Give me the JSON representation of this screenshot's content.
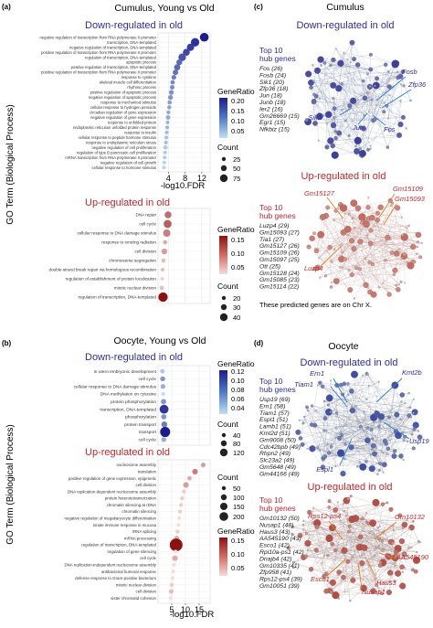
{
  "panel_a": {
    "label": "(a)",
    "title": "Cumulus, Young vs Old",
    "y_axis_label": "GO Term (Biological Process)",
    "x_axis_label": "-log10.FDR",
    "down": {
      "heading": "Down-regulated in old",
      "terms": [
        "negative regulation of transcription from RNA polymerase II promoter",
        "transcription, DNA-templated",
        "negative regulation of transcription, DNA-templated",
        "positive regulation of transcription from RNA polymerase II promoter",
        "regulation of transcription, DNA-templated",
        "apoptotic process",
        "positive regulation of transcription, DNA-templated",
        "positive regulation of transcription from RNA polymerase II promoter",
        "response to cytokine",
        "skeletal muscle cell differentiation",
        "rhythmic process",
        "positive regulation of apoptotic process",
        "negative regulation of apoptotic process",
        "response to mechanical stimulus",
        "cellular response to hydrogen peroxide",
        "circadian regulation of gene expression",
        "negative regulation of gene expression",
        "response to unfolded protein",
        "endoplasmic reticulum unfolded protein response",
        "response to insulin",
        "cellular response to peptide hormone stimulus",
        "response to endoplasmic reticulum stress",
        "negative regulation of cell proliferation",
        "regulation of type B pancreatic cell proliferation",
        "mRNA transcription from RNA polymerase II promoter",
        "negative regulation of cell growth",
        "cellular response to hormone stimulus"
      ]
    },
    "up": {
      "heading": "Up-regulated in old",
      "terms": [
        "DNA repair",
        "cell cycle",
        "cellular response to DNA damage stimulus",
        "response to ionizing radiation",
        "cell division",
        "chromosome segregation",
        "double-strand break repair via homologous recombination",
        "regulation of establishment of protein localization",
        "mitotic nuclear division",
        "regulation of transcription, DNA-templated"
      ]
    },
    "legend": {
      "gene_ratio_title": "GeneRatio",
      "down_gene_ratio_ticks": [
        "0.20",
        "0.15",
        "0.10",
        "0.05"
      ],
      "up_gene_ratio_ticks": [
        "0.15",
        "0.10",
        "0.05"
      ],
      "count_title": "Count",
      "down_count_ticks": [
        "25",
        "50",
        "75"
      ],
      "up_count_ticks": [
        "20",
        "30",
        "40"
      ]
    }
  },
  "panel_b": {
    "label": "(b)",
    "title": "Oocyte, Young vs Old",
    "y_axis_label": "GO Term (Biological Process)",
    "x_axis_label": "-log10.FDR",
    "down": {
      "heading": "Down-regulated in old",
      "terms": [
        "in utero embryonic development",
        "cell cycle",
        "cellular response to DNA damage stimulus",
        "DNA methylation on cytosine",
        "protein phosphorylation",
        "transcription, DNA-templated",
        "phosphorylation",
        "protein transport",
        "transport",
        "cell cycle"
      ]
    },
    "up": {
      "heading": "Up-regulated in old",
      "terms": [
        "nucleosome assembly",
        "translation",
        "positive regulation of gene expression, epigenetic",
        "cell division",
        "DNA replication-dependent nucleosome assembly",
        "protein heterotetramerization",
        "chromatin silencing at rDNA",
        "chromatin silencing",
        "negative regulation of megakaryocyte differentiation",
        "innate immune response in mucosa",
        "rRNA splicing",
        "mRNA processing",
        "regulation of transcription, DNA-templated",
        "regulation of gene silencing",
        "cell cycle",
        "DNA replication-independent nucleosome assembly",
        "antibacterial humoral response",
        "defense response to Gram-positive bacterium",
        "mitotic nuclear division",
        "cell division",
        "sister chromatid cohesion"
      ]
    },
    "legend": {
      "gene_ratio_title": "GeneRatio",
      "down_gene_ratio_ticks": [
        "0.12",
        "0.10",
        "0.08",
        "0.06",
        "0.04"
      ],
      "up_gene_ratio_ticks": [
        "0.15",
        "0.10",
        "0.05"
      ],
      "count_title": "Count",
      "down_count_ticks": [
        "40",
        "80",
        "120"
      ],
      "up_count_ticks": [
        "50",
        "100",
        "150",
        "200"
      ]
    }
  },
  "chart_data": [
    {
      "type": "scatter",
      "title": "Cumulus, Young vs Old — Down-regulated in old",
      "xlabel": "-log10.FDR",
      "xticks": [
        4,
        8,
        12
      ],
      "xlim": [
        1.5,
        14
      ],
      "points": [
        {
          "term": "negative regulation of transcription from RNA polymerase II promoter",
          "x": 12.6,
          "ratio": 0.22,
          "count": 80
        },
        {
          "term": "transcription, DNA-templated",
          "x": 10.4,
          "ratio": 0.2,
          "count": 75
        },
        {
          "term": "negative regulation of transcription, DNA-templated",
          "x": 9.3,
          "ratio": 0.19,
          "count": 60
        },
        {
          "term": "positive regulation of transcription from RNA polymerase II promoter",
          "x": 8.3,
          "ratio": 0.18,
          "count": 55
        },
        {
          "term": "regulation of transcription, DNA-templated",
          "x": 7.3,
          "ratio": 0.17,
          "count": 65
        },
        {
          "term": "apoptotic process",
          "x": 6.6,
          "ratio": 0.15,
          "count": 40
        },
        {
          "term": "positive regulation of transcription, DNA-templated",
          "x": 6.1,
          "ratio": 0.15,
          "count": 45
        },
        {
          "term": "positive regulation of transcription from RNA polymerase II promoter",
          "x": 5.7,
          "ratio": 0.14,
          "count": 35
        },
        {
          "term": "response to cytokine",
          "x": 5.3,
          "ratio": 0.13,
          "count": 25
        },
        {
          "term": "skeletal muscle cell differentiation",
          "x": 5.0,
          "ratio": 0.12,
          "count": 20
        },
        {
          "term": "rhythmic process",
          "x": 4.9,
          "ratio": 0.12,
          "count": 22
        },
        {
          "term": "positive regulation of apoptotic process",
          "x": 4.7,
          "ratio": 0.11,
          "count": 28
        },
        {
          "term": "negative regulation of apoptotic process",
          "x": 4.5,
          "ratio": 0.11,
          "count": 26
        },
        {
          "term": "response to mechanical stimulus",
          "x": 4.3,
          "ratio": 0.1,
          "count": 18
        },
        {
          "term": "cellular response to hydrogen peroxide",
          "x": 4.2,
          "ratio": 0.1,
          "count": 15
        },
        {
          "term": "circadian regulation of gene expression",
          "x": 4.0,
          "ratio": 0.09,
          "count": 14
        },
        {
          "term": "negative regulation of gene expression",
          "x": 3.9,
          "ratio": 0.09,
          "count": 22
        },
        {
          "term": "response to unfolded protein",
          "x": 3.8,
          "ratio": 0.08,
          "count": 12
        },
        {
          "term": "endoplasmic reticulum unfolded protein response",
          "x": 3.7,
          "ratio": 0.08,
          "count": 11
        },
        {
          "term": "response to insulin",
          "x": 3.6,
          "ratio": 0.07,
          "count": 13
        },
        {
          "term": "cellular response to peptide hormone stimulus",
          "x": 3.5,
          "ratio": 0.07,
          "count": 12
        },
        {
          "term": "response to endoplasmic reticulum stress",
          "x": 3.4,
          "ratio": 0.07,
          "count": 13
        },
        {
          "term": "negative regulation of cell proliferation",
          "x": 3.3,
          "ratio": 0.06,
          "count": 20
        },
        {
          "term": "regulation of type B pancreatic cell proliferation",
          "x": 3.2,
          "ratio": 0.06,
          "count": 8
        },
        {
          "term": "mRNA transcription from RNA polymerase II promoter",
          "x": 3.1,
          "ratio": 0.06,
          "count": 9
        },
        {
          "term": "negative regulation of cell growth",
          "x": 3.0,
          "ratio": 0.05,
          "count": 11
        },
        {
          "term": "cellular response to hormone stimulus",
          "x": 2.9,
          "ratio": 0.05,
          "count": 10
        }
      ]
    },
    {
      "type": "scatter",
      "title": "Cumulus, Young vs Old — Up-regulated in old",
      "xlabel": "-log10.FDR",
      "xticks": [
        4,
        8,
        12
      ],
      "xlim": [
        1.5,
        14
      ],
      "points": [
        {
          "term": "DNA repair",
          "x": 3.9,
          "ratio": 0.1,
          "count": 30
        },
        {
          "term": "cell cycle",
          "x": 3.8,
          "ratio": 0.11,
          "count": 35
        },
        {
          "term": "cellular response to DNA damage stimulus",
          "x": 3.6,
          "ratio": 0.09,
          "count": 32
        },
        {
          "term": "response to ionizing radiation",
          "x": 3.2,
          "ratio": 0.06,
          "count": 18
        },
        {
          "term": "cell division",
          "x": 3.0,
          "ratio": 0.07,
          "count": 25
        },
        {
          "term": "chromosome segregation",
          "x": 2.8,
          "ratio": 0.05,
          "count": 17
        },
        {
          "term": "double-strand break repair via homologous recombination",
          "x": 2.6,
          "ratio": 0.05,
          "count": 15
        },
        {
          "term": "regulation of establishment of protein localization",
          "x": 2.5,
          "ratio": 0.04,
          "count": 14
        },
        {
          "term": "mitotic nuclear division",
          "x": 2.4,
          "ratio": 0.05,
          "count": 18
        },
        {
          "term": "regulation of transcription, DNA-templated",
          "x": 2.7,
          "ratio": 0.16,
          "count": 42
        }
      ]
    },
    {
      "type": "scatter",
      "title": "Oocyte, Young vs Old — Down-regulated in old",
      "xlabel": "-log10.FDR",
      "xticks": [
        5,
        10,
        15
      ],
      "xlim": [
        0,
        19
      ],
      "points": [
        {
          "term": "in utero embryonic development",
          "x": 1.6,
          "ratio": 0.05,
          "count": 30
        },
        {
          "term": "cell cycle",
          "x": 1.7,
          "ratio": 0.07,
          "count": 40
        },
        {
          "term": "cellular response to DNA damage stimulus",
          "x": 1.8,
          "ratio": 0.06,
          "count": 35
        },
        {
          "term": "DNA methylation on cytosine",
          "x": 1.9,
          "ratio": 0.04,
          "count": 20
        },
        {
          "term": "protein phosphorylation",
          "x": 2.0,
          "ratio": 0.07,
          "count": 45
        },
        {
          "term": "transcription, DNA-templated",
          "x": 2.2,
          "ratio": 0.11,
          "count": 110
        },
        {
          "term": "phosphorylation",
          "x": 2.1,
          "ratio": 0.07,
          "count": 45
        },
        {
          "term": "protein transport",
          "x": 2.3,
          "ratio": 0.08,
          "count": 55
        },
        {
          "term": "transport",
          "x": 2.6,
          "ratio": 0.12,
          "count": 130
        },
        {
          "term": "cell cycle",
          "x": 2.1,
          "ratio": 0.06,
          "count": 40
        }
      ]
    },
    {
      "type": "scatter",
      "title": "Oocyte, Young vs Old — Up-regulated in old",
      "xlabel": "-log10.FDR",
      "xticks": [
        5,
        10,
        15
      ],
      "xlim": [
        0,
        19
      ],
      "points": [
        {
          "term": "nucleosome assembly",
          "x": 16.5,
          "ratio": 0.07,
          "count": 40
        },
        {
          "term": "translation",
          "x": 13.5,
          "ratio": 0.09,
          "count": 60
        },
        {
          "term": "positive regulation of gene expression, epigenetic",
          "x": 11.5,
          "ratio": 0.06,
          "count": 35
        },
        {
          "term": "cell division",
          "x": 10.2,
          "ratio": 0.07,
          "count": 60
        },
        {
          "term": "DNA replication-dependent nucleosome assembly",
          "x": 9.4,
          "ratio": 0.04,
          "count": 25
        },
        {
          "term": "protein heterotetramerization",
          "x": 8.8,
          "ratio": 0.04,
          "count": 25
        },
        {
          "term": "chromatin silencing at rDNA",
          "x": 8.4,
          "ratio": 0.04,
          "count": 22
        },
        {
          "term": "chromatin silencing",
          "x": 8.0,
          "ratio": 0.04,
          "count": 24
        },
        {
          "term": "negative regulation of megakaryocyte differentiation",
          "x": 7.7,
          "ratio": 0.03,
          "count": 20
        },
        {
          "term": "innate immune response in mucosa",
          "x": 7.4,
          "ratio": 0.03,
          "count": 20
        },
        {
          "term": "rRNA splicing",
          "x": 7.1,
          "ratio": 0.04,
          "count": 28
        },
        {
          "term": "mRNA processing",
          "x": 6.8,
          "ratio": 0.06,
          "count": 50
        },
        {
          "term": "regulation of transcription, DNA-templated",
          "x": 6.6,
          "ratio": 0.16,
          "count": 210
        },
        {
          "term": "regulation of gene silencing",
          "x": 6.4,
          "ratio": 0.03,
          "count": 20
        },
        {
          "term": "cell cycle",
          "x": 6.2,
          "ratio": 0.06,
          "count": 60
        },
        {
          "term": "DNA replication-independent nucleosome assembly",
          "x": 5.9,
          "ratio": 0.03,
          "count": 20
        },
        {
          "term": "antibacterial humoral response",
          "x": 5.6,
          "ratio": 0.03,
          "count": 18
        },
        {
          "term": "defense response to Gram-positive bacterium",
          "x": 5.3,
          "ratio": 0.03,
          "count": 22
        },
        {
          "term": "mitotic nuclear division",
          "x": 5.0,
          "ratio": 0.04,
          "count": 30
        },
        {
          "term": "cell division",
          "x": 4.8,
          "ratio": 0.05,
          "count": 40
        },
        {
          "term": "sister chromatid cohesion",
          "x": 4.6,
          "ratio": 0.03,
          "count": 20
        }
      ]
    }
  ],
  "panel_c": {
    "label": "(c)",
    "title": "Cumulus",
    "down": {
      "heading": "Down-regulated in old",
      "hub_title": "Top 10 hub genes",
      "hub_genes": [
        "Fos (26)",
        "Fosb (24)",
        "Sik1 (20)",
        "Zfp36 (18)",
        "Jun (18)",
        "Junb (18)",
        "Ier2 (16)",
        "Gm26669 (15)",
        "Egr1 (15)",
        "Nfkbiz (15)"
      ],
      "callouts": [
        "Fosb",
        "Zfp36",
        "Sik1",
        "Jun",
        "Fos"
      ]
    },
    "up": {
      "heading": "Up-regulated in old",
      "hub_title": "Top 10 hub genes",
      "hub_genes": [
        "Luzp4 (29)",
        "Gm15093 (27)",
        "Tia1 (27)",
        "Gm15127 (26)",
        "Gm15109 (26)",
        "Gm15097 (25)",
        "Ott (25)",
        "Gm15128 (24)",
        "Gm15085 (23)",
        "Gm15114 (22)"
      ],
      "callouts": [
        "Gm15127",
        "Gm15109",
        "Gm15093",
        "Luzp4"
      ],
      "note": "These predicted genes are on Chr X."
    }
  },
  "panel_d": {
    "label": "(d)",
    "title": "Oocyte",
    "down": {
      "heading": "Down-regulated in old",
      "hub_title": "Top 10 hub genes",
      "hub_genes": [
        "Usp19 (69)",
        "Ern1 (58)",
        "Tiam1 (57)",
        "Espl1 (51)",
        "Lamb1 (51)",
        "Kmt2d (51)",
        "Gm9008 (50)",
        "Cdc42bpb (49)",
        "Rhpn2 (49)",
        "Slc23a2 (49)",
        "Gm5648 (49)",
        "Gm44166 (49)"
      ],
      "callouts": [
        "Ern1",
        "Kmt2b",
        "Tiam1",
        "Usp19",
        "Espl1"
      ]
    },
    "up": {
      "heading": "Up-regulated in old",
      "hub_title": "Top 10 hub genes",
      "hub_genes": [
        "Gm10132 (50)",
        "Nusap1 (48)",
        "Haus3 (43)",
        "AA545190 (43)",
        "Esco1 (42)",
        "Rpl10a-ps1 (42)",
        "Dnajb4 (42)",
        "Gm10335 (41)",
        "Zfp958 (41)",
        "Rps12-ps4 (39)",
        "Gm10051 (39)"
      ],
      "callouts": [
        "Rps12-ps4",
        "Gm10132",
        "AA545190",
        "Esco1",
        "Haus3",
        "Nusap1"
      ]
    }
  },
  "colors": {
    "down_title": "#2e2e9a",
    "up_title": "#c0272d",
    "blue_dark": "#1c1c8f",
    "blue_light": "#bfe0f3",
    "red_dark": "#8e1111",
    "red_light": "#f7dbd8",
    "down_callout": "#2e2e9a",
    "up_callout": "#c0272d",
    "up_callout_line": "#e77f1e",
    "down_callout_line": "#2b7ad0"
  }
}
